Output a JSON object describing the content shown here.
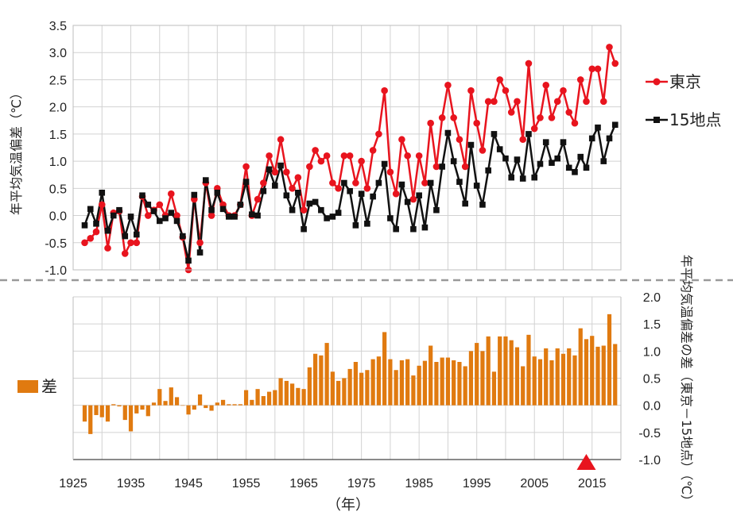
{
  "chart_data": [
    {
      "type": "line",
      "ylabel": "年平均気温偏差（℃）",
      "ylim": [
        -1.0,
        3.5
      ],
      "yticks": [
        "3.5",
        "3.0",
        "2.5",
        "2.0",
        "1.5",
        "1.0",
        "0.5",
        "0.0",
        "-0.5",
        "-1.0"
      ],
      "grid": true,
      "legend_position": "right",
      "x": [
        1927,
        1928,
        1929,
        1930,
        1931,
        1932,
        1933,
        1934,
        1935,
        1936,
        1937,
        1938,
        1939,
        1940,
        1941,
        1942,
        1943,
        1944,
        1945,
        1946,
        1947,
        1948,
        1949,
        1950,
        1951,
        1952,
        1953,
        1954,
        1955,
        1956,
        1957,
        1958,
        1959,
        1960,
        1961,
        1962,
        1963,
        1964,
        1965,
        1966,
        1967,
        1968,
        1969,
        1970,
        1971,
        1972,
        1973,
        1974,
        1975,
        1976,
        1977,
        1978,
        1979,
        1980,
        1981,
        1982,
        1983,
        1984,
        1985,
        1986,
        1987,
        1988,
        1989,
        1990,
        1991,
        1992,
        1993,
        1994,
        1995,
        1996,
        1997,
        1998,
        1999,
        2000,
        2001,
        2002,
        2003,
        2004,
        2005,
        2006,
        2007,
        2008,
        2009,
        2010,
        2011,
        2012,
        2013,
        2014,
        2015,
        2016,
        2017,
        2018,
        2019
      ],
      "series": [
        {
          "name": "東京",
          "color": "#e8141e",
          "marker": "circle",
          "values": [
            -0.5,
            -0.42,
            -0.3,
            0.2,
            -0.6,
            0.05,
            0.08,
            -0.7,
            -0.5,
            -0.5,
            0.35,
            0.0,
            0.1,
            0.2,
            0.0,
            0.4,
            0.0,
            -0.4,
            -1.0,
            0.3,
            -0.5,
            0.6,
            0.0,
            0.5,
            0.2,
            0.0,
            0.0,
            0.2,
            0.9,
            0.0,
            0.3,
            0.6,
            1.1,
            0.8,
            1.4,
            0.8,
            0.5,
            0.7,
            0.1,
            0.9,
            1.2,
            1.0,
            1.1,
            0.6,
            0.5,
            1.1,
            1.1,
            0.6,
            1.0,
            0.5,
            1.2,
            1.5,
            2.3,
            0.8,
            0.4,
            1.4,
            1.1,
            0.3,
            1.1,
            0.6,
            1.7,
            0.9,
            1.8,
            2.4,
            1.8,
            1.4,
            0.9,
            2.3,
            1.7,
            1.2,
            2.1,
            2.1,
            2.5,
            2.3,
            1.9,
            2.1,
            1.4,
            2.8,
            1.6,
            1.8,
            2.4,
            1.8,
            2.1,
            2.3,
            1.9,
            1.7,
            2.5,
            2.1,
            2.7,
            2.7,
            2.1,
            3.1,
            2.8
          ]
        },
        {
          "name": "15地点",
          "color": "#111111",
          "marker": "square",
          "values": [
            -0.18,
            0.12,
            -0.15,
            0.42,
            -0.28,
            0.0,
            0.1,
            -0.38,
            -0.02,
            -0.35,
            0.37,
            0.2,
            0.08,
            -0.1,
            -0.05,
            0.05,
            -0.1,
            -0.38,
            -0.83,
            0.38,
            -0.68,
            0.65,
            0.1,
            0.42,
            0.12,
            -0.02,
            -0.02,
            0.2,
            0.62,
            0.02,
            0.0,
            0.45,
            0.85,
            0.55,
            0.92,
            0.37,
            0.1,
            0.42,
            -0.25,
            0.22,
            0.25,
            0.1,
            -0.05,
            -0.02,
            0.05,
            0.6,
            0.45,
            -0.18,
            0.4,
            -0.15,
            0.35,
            0.6,
            0.95,
            -0.05,
            -0.25,
            0.57,
            0.25,
            -0.25,
            0.37,
            -0.22,
            0.6,
            0.1,
            0.9,
            1.52,
            1.0,
            0.62,
            0.22,
            1.3,
            0.55,
            0.2,
            0.83,
            1.5,
            1.22,
            1.05,
            0.7,
            1.03,
            0.68,
            1.5,
            0.7,
            0.95,
            1.35,
            0.97,
            1.05,
            1.35,
            0.88,
            0.8,
            1.08,
            0.88,
            1.42,
            1.62,
            1.0,
            1.42,
            1.67
          ]
        }
      ]
    },
    {
      "type": "bar",
      "ylabel": "年平均気温偏差の差（東京－15地点）（℃）",
      "ylim": [
        -1.0,
        2.0
      ],
      "yticks": [
        "2.0",
        "1.5",
        "1.0",
        "0.5",
        "0.0",
        "-0.5",
        "-1.0"
      ],
      "grid": true,
      "legend_position": "left",
      "xlabel": "（年）",
      "xticks": [
        "1925",
        "1935",
        "1945",
        "1955",
        "1965",
        "1975",
        "1985",
        "1995",
        "2005",
        "2015"
      ],
      "x": [
        1927,
        1928,
        1929,
        1930,
        1931,
        1932,
        1933,
        1934,
        1935,
        1936,
        1937,
        1938,
        1939,
        1940,
        1941,
        1942,
        1943,
        1944,
        1945,
        1946,
        1947,
        1948,
        1949,
        1950,
        1951,
        1952,
        1953,
        1954,
        1955,
        1956,
        1957,
        1958,
        1959,
        1960,
        1961,
        1962,
        1963,
        1964,
        1965,
        1966,
        1967,
        1968,
        1969,
        1970,
        1971,
        1972,
        1973,
        1974,
        1975,
        1976,
        1977,
        1978,
        1979,
        1980,
        1981,
        1982,
        1983,
        1984,
        1985,
        1986,
        1987,
        1988,
        1989,
        1990,
        1991,
        1992,
        1993,
        1994,
        1995,
        1996,
        1997,
        1998,
        1999,
        2000,
        2001,
        2002,
        2003,
        2004,
        2005,
        2006,
        2007,
        2008,
        2009,
        2010,
        2011,
        2012,
        2013,
        2014,
        2015,
        2016,
        2017,
        2018,
        2019
      ],
      "series": [
        {
          "name": "差",
          "color": "#e07a10",
          "values": [
            -0.3,
            -0.53,
            -0.18,
            -0.22,
            -0.3,
            0.02,
            -0.02,
            -0.27,
            -0.48,
            -0.15,
            -0.08,
            -0.2,
            0.05,
            0.3,
            0.08,
            0.33,
            0.15,
            0.0,
            -0.17,
            -0.08,
            0.2,
            -0.05,
            -0.1,
            0.05,
            0.1,
            0.02,
            0.02,
            0.02,
            0.28,
            0.1,
            0.3,
            0.17,
            0.25,
            0.28,
            0.5,
            0.45,
            0.4,
            0.32,
            0.3,
            0.7,
            0.95,
            0.92,
            1.15,
            0.62,
            0.45,
            0.5,
            0.67,
            0.8,
            0.6,
            0.65,
            0.85,
            0.9,
            1.35,
            0.85,
            0.65,
            0.83,
            0.85,
            0.55,
            0.73,
            0.82,
            1.1,
            0.8,
            0.88,
            0.88,
            0.83,
            0.8,
            0.72,
            1.0,
            1.15,
            1.0,
            1.27,
            0.62,
            1.27,
            1.27,
            1.2,
            1.07,
            0.72,
            1.3,
            0.9,
            0.85,
            1.05,
            0.83,
            1.05,
            0.95,
            1.05,
            0.92,
            1.42,
            1.22,
            1.28,
            1.08,
            1.1,
            1.68,
            1.13
          ]
        }
      ],
      "annotations": [
        {
          "type": "triangle-marker",
          "color": "#e8141e",
          "x": 2014
        }
      ]
    }
  ]
}
